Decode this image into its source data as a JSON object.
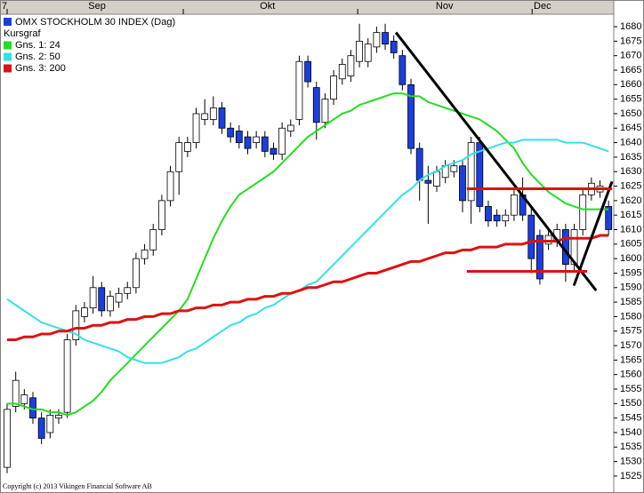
{
  "chart_data": {
    "type": "candlestick",
    "title": "OMX STOCKHOLM 30 INDEX (Dag)",
    "title_color": "#1c3ee0",
    "subtitle": "Kursgraf",
    "footer": "Copyright (c) 2013 Vikingen Financial Software AB",
    "up_color": "#ffffff",
    "down_color": "#1c3ee0",
    "categories": [
      null,
      null,
      null,
      null,
      null,
      null,
      null,
      null,
      null,
      null,
      null,
      null,
      null,
      null,
      null,
      null,
      null,
      null,
      null,
      null,
      null,
      null,
      null,
      null,
      null,
      null,
      null,
      null,
      null,
      null,
      null,
      null,
      null,
      null,
      null,
      null,
      null,
      null,
      null,
      null,
      null,
      null,
      null,
      null,
      null,
      null,
      null,
      null,
      null,
      null,
      null,
      null,
      null,
      null,
      null,
      null,
      null,
      null,
      null,
      null,
      null,
      null,
      null,
      null,
      null,
      null,
      null,
      null,
      null,
      null,
      null
    ],
    "open": [
      1528,
      1549,
      1550,
      1552,
      1545,
      1540,
      1545,
      1547,
      1572,
      1580,
      1583,
      1590,
      1582,
      1585,
      1588,
      1590,
      1600,
      1603,
      1610,
      1620,
      1630,
      1637,
      1640,
      1648,
      1648,
      1652,
      1645,
      1644,
      1642,
      1640,
      1642,
      1638,
      1636,
      1644,
      1648,
      1668,
      1659,
      1647,
      1655,
      1662,
      1663,
      1668,
      1668,
      1673,
      1678,
      1675,
      1670,
      1660,
      1638,
      1627,
      1625,
      1628,
      1630,
      1632,
      1620,
      1640,
      1618,
      1615,
      1613,
      1615,
      1622,
      1615,
      1608,
      1605,
      1606,
      1610,
      1598,
      1610,
      1622,
      1623,
      1618
    ],
    "high": [
      1550,
      1561,
      1555,
      1554,
      1547,
      1548,
      1548,
      1574,
      1584,
      1585,
      1594,
      1592,
      1589,
      1590,
      1592,
      1602,
      1605,
      1612,
      1622,
      1632,
      1642,
      1642,
      1652,
      1655,
      1656,
      1654,
      1647,
      1646,
      1644,
      1644,
      1644,
      1640,
      1647,
      1648,
      1670,
      1670,
      1661,
      1657,
      1665,
      1669,
      1672,
      1681,
      1676,
      1680,
      1681,
      1677,
      1672,
      1662,
      1640,
      1632,
      1632,
      1634,
      1634,
      1634,
      1642,
      1642,
      1620,
      1617,
      1617,
      1624,
      1628,
      1618,
      1610,
      1610,
      1612,
      1612,
      1612,
      1624,
      1628,
      1627,
      1620
    ],
    "low": [
      1526,
      1547,
      1548,
      1543,
      1536,
      1538,
      1543,
      1545,
      1570,
      1578,
      1581,
      1580,
      1580,
      1583,
      1586,
      1588,
      1598,
      1601,
      1608,
      1618,
      1622,
      1635,
      1638,
      1646,
      1646,
      1643,
      1640,
      1638,
      1636,
      1638,
      1635,
      1634,
      1634,
      1642,
      1646,
      1659,
      1641,
      1645,
      1653,
      1660,
      1661,
      1666,
      1666,
      1671,
      1672,
      1669,
      1658,
      1636,
      1620,
      1612,
      1623,
      1626,
      1628,
      1616,
      1612,
      1616,
      1611,
      1611,
      1611,
      1613,
      1613,
      1595,
      1591,
      1603,
      1604,
      1592,
      1596,
      1608,
      1620,
      1621,
      1608
    ],
    "close": [
      1548,
      1558,
      1553,
      1545,
      1538,
      1546,
      1546,
      1572,
      1582,
      1583,
      1590,
      1582,
      1587,
      1588,
      1590,
      1600,
      1603,
      1610,
      1620,
      1630,
      1640,
      1640,
      1650,
      1650,
      1652,
      1645,
      1642,
      1640,
      1638,
      1642,
      1637,
      1636,
      1645,
      1646,
      1668,
      1661,
      1647,
      1655,
      1663,
      1667,
      1670,
      1675,
      1674,
      1678,
      1674,
      1671,
      1660,
      1638,
      1627,
      1626,
      1630,
      1632,
      1632,
      1620,
      1640,
      1618,
      1613,
      1613,
      1615,
      1622,
      1615,
      1600,
      1593,
      1608,
      1610,
      1598,
      1610,
      1622,
      1626,
      1625,
      1610
    ],
    "series": [
      {
        "name": "Gns. 1: 24",
        "color": "#22dd22",
        "values": [
          1550,
          1550,
          1549,
          1548,
          1548,
          1547,
          1547,
          1546,
          1547,
          1549,
          1551,
          1554,
          1558,
          1561,
          1564,
          1567,
          1570,
          1573,
          1576,
          1579,
          1582,
          1586,
          1593,
          1600,
          1607,
          1613,
          1618,
          1622,
          1624,
          1626,
          1628,
          1630,
          1633,
          1636,
          1639,
          1642,
          1644,
          1646,
          1648,
          1650,
          1651,
          1653,
          1654,
          1655,
          1656,
          1657,
          1657,
          1656,
          1656,
          1654,
          1653,
          1652,
          1651,
          1650,
          1649,
          1648,
          1646,
          1644,
          1641,
          1638,
          1633,
          1629,
          1626,
          1623,
          1621,
          1619,
          1618,
          1617,
          1617,
          1617,
          1617
        ]
      },
      {
        "name": "Gns. 2: 50",
        "color": "#33e0e8",
        "values": [
          1586,
          1584,
          1582,
          1580,
          1578,
          1577,
          1576,
          1575,
          1574,
          1572,
          1571,
          1570,
          1569,
          1568,
          1566,
          1565,
          1564,
          1564,
          1564,
          1565,
          1566,
          1568,
          1569,
          1571,
          1573,
          1575,
          1577,
          1578,
          1580,
          1581,
          1583,
          1584,
          1586,
          1588,
          1589,
          1591,
          1592,
          1595,
          1598,
          1601,
          1604,
          1607,
          1610,
          1613,
          1616,
          1619,
          1622,
          1624,
          1627,
          1629,
          1630,
          1632,
          1633,
          1634,
          1636,
          1637,
          1638,
          1639,
          1640,
          1640,
          1641,
          1641,
          1641,
          1641,
          1641,
          1640,
          1640,
          1640,
          1639,
          1638,
          1637
        ]
      },
      {
        "name": "Gns. 3: 200",
        "color": "#dd1111",
        "values": [
          1572,
          1572,
          1573,
          1573,
          1574,
          1574,
          1575,
          1575,
          1576,
          1576,
          1577,
          1577,
          1578,
          1578,
          1579,
          1579,
          1580,
          1580,
          1581,
          1581,
          1582,
          1582,
          1583,
          1583,
          1584,
          1584,
          1585,
          1585,
          1586,
          1586,
          1587,
          1587,
          1588,
          1588,
          1589,
          1590,
          1590,
          1591,
          1592,
          1592,
          1593,
          1594,
          1595,
          1595,
          1596,
          1597,
          1598,
          1599,
          1599,
          1600,
          1601,
          1602,
          1602,
          1603,
          1603,
          1604,
          1604,
          1604,
          1605,
          1605,
          1605,
          1606,
          1606,
          1606,
          1606,
          1607,
          1607,
          1607,
          1607,
          1608,
          1608
        ]
      }
    ],
    "trendlines": [
      {
        "color": "#000000",
        "x": [
          45.25,
          68.55
        ],
        "y": [
          1678,
          1589
        ]
      },
      {
        "color": "#000000",
        "x": [
          65.96,
          70.4
        ],
        "y": [
          1590.7,
          1626.6
        ]
      },
      {
        "color": "#dd1111",
        "x": [
          53.5,
          70.4
        ],
        "y": [
          1624.1,
          1624.1
        ]
      },
      {
        "color": "#dd1111",
        "x": [
          53.5,
          67.5
        ],
        "y": [
          1595.6,
          1595.6
        ]
      }
    ],
    "xlim": [
      -0.83,
      70.6
    ],
    "xticks": [
      0,
      20.5,
      40.8,
      61.1
    ],
    "month_labels": [
      {
        "value": -0.3,
        "label": "7"
      },
      {
        "value": 10.46,
        "label": "Sep"
      },
      {
        "value": 30.3,
        "label": "Okt"
      },
      {
        "value": 50.9,
        "label": "Nov"
      },
      {
        "value": 62.3,
        "label": "Dec"
      }
    ],
    "ylim": [
      1521.3,
      1684.3
    ],
    "yticks": [
      1525,
      1530,
      1535,
      1540,
      1545,
      1550,
      1555,
      1560,
      1565,
      1570,
      1575,
      1580,
      1585,
      1590,
      1595,
      1600,
      1605,
      1610,
      1615,
      1620,
      1625,
      1630,
      1635,
      1640,
      1645,
      1650,
      1655,
      1660,
      1665,
      1670,
      1675,
      1680
    ]
  }
}
